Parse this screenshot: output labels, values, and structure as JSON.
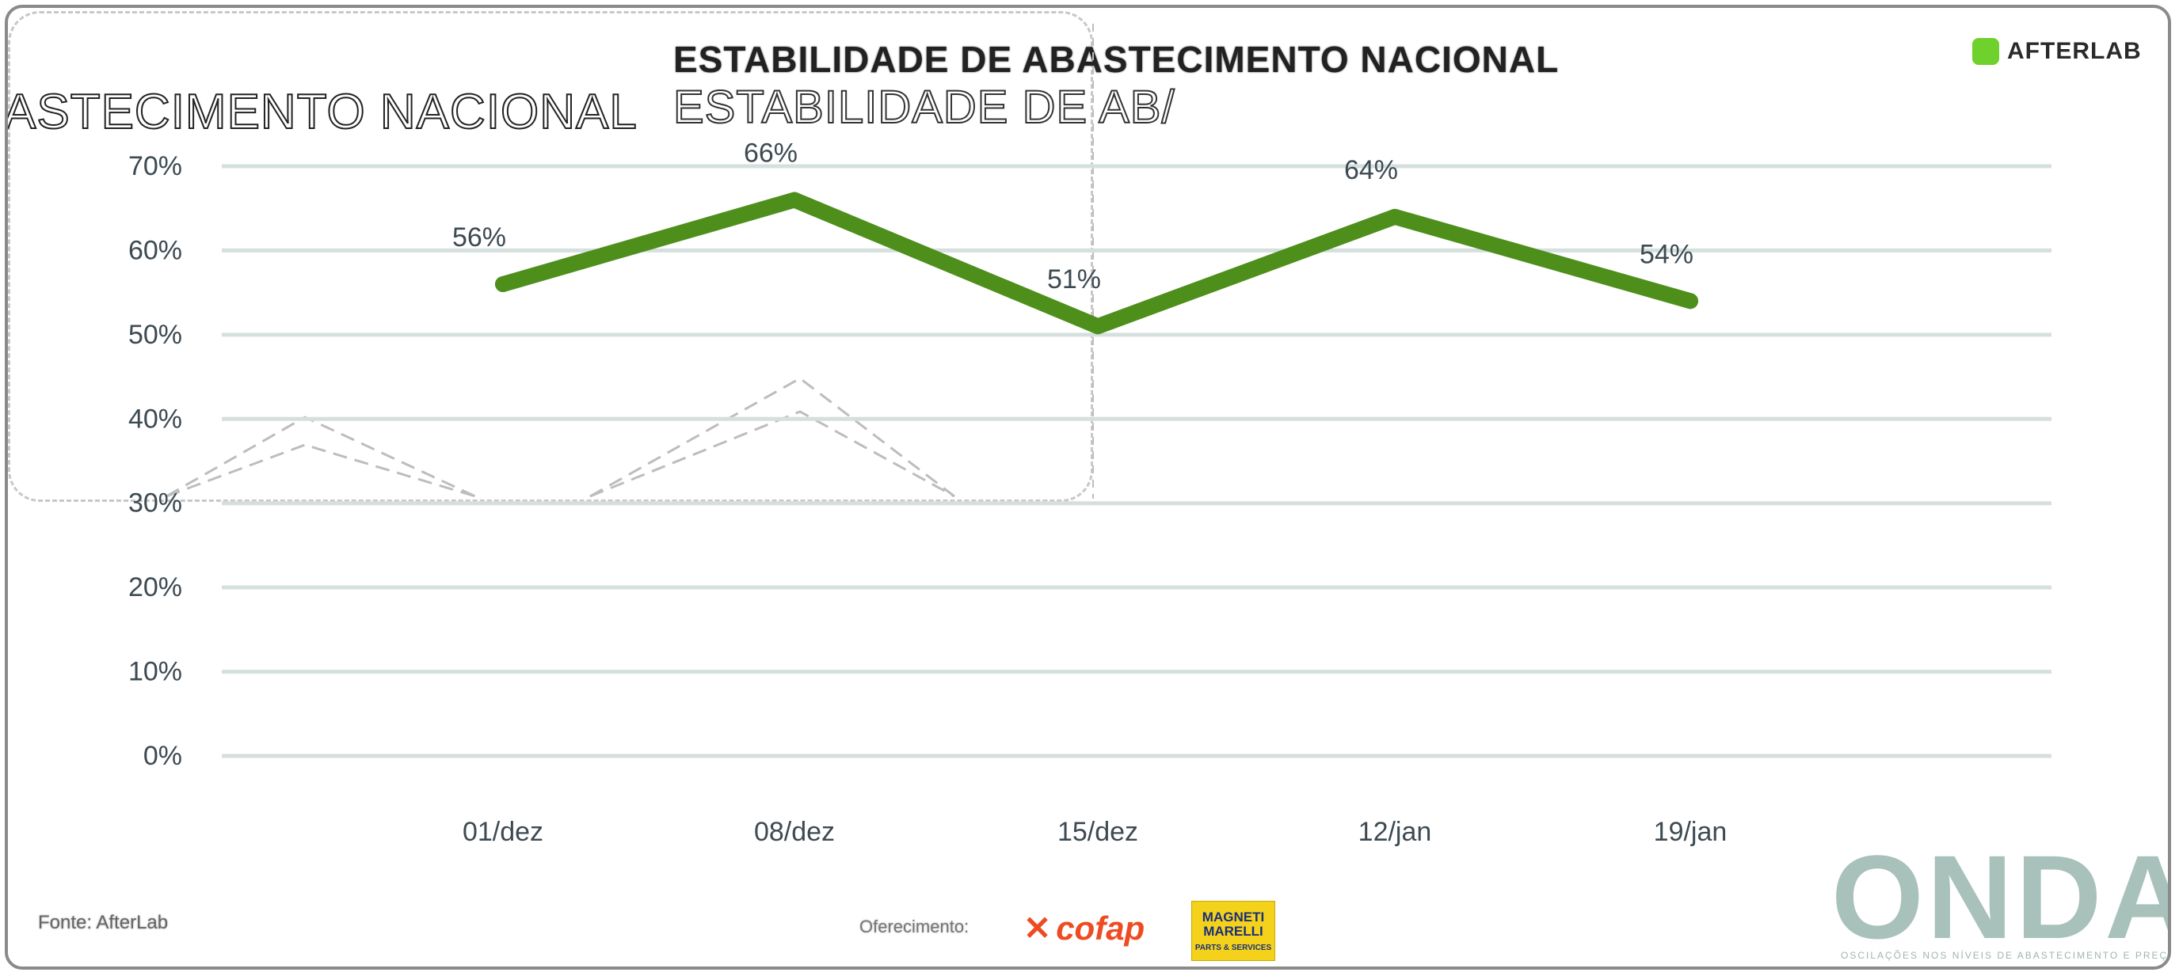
{
  "header": {
    "title": "ESTABILIDADE DE ABASTECIMENTO NACIONAL",
    "ghost_title_left": "ASTECIMENTO NACIONAL",
    "ghost_title_mid": "ESTABILIDADE DE AB/",
    "brand": "AFTERLAB"
  },
  "footer": {
    "source": "Fonte: AfterLab",
    "sponsor_label": "Oferecimento:",
    "cofap": "cofap",
    "magneti_name": "MAGNETI MARELLI",
    "magneti_sub": "PARTS & SERVICES",
    "onda": "ONDA",
    "onda_tagline": "OSCILAÇÕES NOS NÍVEIS DE ABASTECIMENTO E PREÇOS"
  },
  "colors": {
    "line": "#4e8f1c",
    "grid": "#d5e0de",
    "tick": "#3d4a52",
    "ghost": "#bdbdbd"
  },
  "chart_data": {
    "type": "line",
    "categories": [
      "01/dez",
      "08/dez",
      "15/dez",
      "12/jan",
      "19/jan"
    ],
    "series": [
      {
        "values": [
          56,
          66,
          51,
          64,
          54
        ]
      }
    ],
    "data_labels": [
      "56%",
      "66%",
      "51%",
      "64%",
      "54%"
    ],
    "yticks": [
      "0%",
      "10%",
      "20%",
      "30%",
      "40%",
      "50%",
      "60%",
      "70%"
    ],
    "ylim": [
      0,
      70
    ],
    "grid": true,
    "legend": "none"
  }
}
